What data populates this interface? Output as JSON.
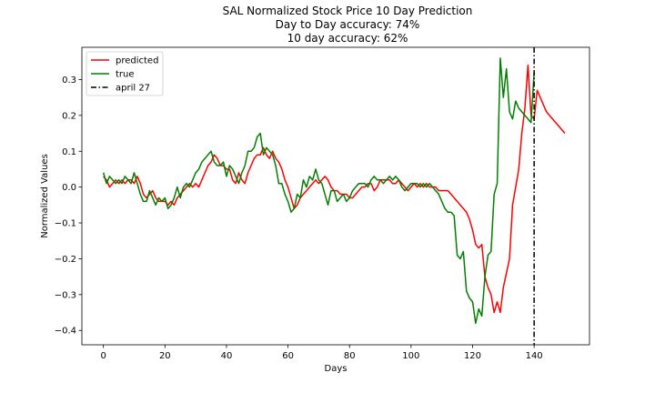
{
  "chart_data": {
    "type": "line",
    "title": [
      "SAL Normalized Stock Price 10 Day Prediction",
      "Day to Day accuracy: 74%",
      "10 day accuracy: 62%"
    ],
    "xlabel": "Days",
    "ylabel": "Normalized Values",
    "xlim": [
      -7,
      158
    ],
    "ylim": [
      -0.44,
      0.39
    ],
    "xticks": [
      0,
      20,
      40,
      60,
      80,
      100,
      120,
      140
    ],
    "xtick_labels": [
      "0",
      "20",
      "40",
      "60",
      "80",
      "100",
      "120",
      "140"
    ],
    "yticks": [
      -0.4,
      -0.3,
      -0.2,
      -0.1,
      0.0,
      0.1,
      0.2,
      0.3
    ],
    "ytick_labels": [
      "−0.4",
      "−0.3",
      "−0.2",
      "−0.1",
      "0.0",
      "0.1",
      "0.2",
      "0.3"
    ],
    "grid": false,
    "legend": "top-left",
    "vline": {
      "x": 140,
      "name": "april 27",
      "color": "#000000",
      "style": "dash-dot"
    },
    "series": [
      {
        "name": "predicted",
        "color": "#ff0000",
        "x": [
          0,
          1,
          2,
          3,
          4,
          5,
          6,
          7,
          8,
          9,
          10,
          11,
          12,
          13,
          14,
          15,
          16,
          17,
          18,
          19,
          20,
          21,
          22,
          23,
          24,
          25,
          26,
          27,
          28,
          29,
          30,
          31,
          32,
          33,
          34,
          35,
          36,
          37,
          38,
          39,
          40,
          41,
          42,
          43,
          44,
          45,
          46,
          47,
          48,
          49,
          50,
          51,
          52,
          53,
          54,
          55,
          56,
          57,
          58,
          59,
          60,
          61,
          62,
          63,
          64,
          65,
          66,
          67,
          68,
          69,
          70,
          71,
          72,
          73,
          74,
          75,
          76,
          77,
          78,
          79,
          80,
          81,
          82,
          83,
          84,
          85,
          86,
          87,
          88,
          89,
          90,
          91,
          92,
          93,
          94,
          95,
          96,
          97,
          98,
          99,
          100,
          101,
          102,
          103,
          104,
          105,
          106,
          107,
          108,
          109,
          110,
          111,
          112,
          113,
          114,
          115,
          116,
          117,
          118,
          119,
          120,
          121,
          122,
          123,
          124,
          125,
          126,
          127,
          128,
          129,
          130,
          131,
          132,
          133,
          134,
          135,
          136,
          137,
          138,
          139,
          140,
          141,
          142,
          143,
          144,
          145,
          146,
          147,
          148,
          149,
          150
        ],
        "y": [
          0.03,
          0.02,
          0.0,
          0.01,
          0.02,
          0.01,
          0.02,
          0.01,
          0.02,
          0.02,
          0.01,
          0.03,
          0.01,
          -0.02,
          -0.03,
          -0.02,
          -0.01,
          -0.03,
          -0.04,
          -0.04,
          -0.04,
          -0.05,
          -0.04,
          -0.05,
          -0.03,
          -0.02,
          -0.01,
          0.0,
          0.01,
          0.0,
          0.01,
          0.0,
          0.02,
          0.04,
          0.06,
          0.07,
          0.09,
          0.08,
          0.06,
          0.06,
          0.05,
          0.05,
          0.02,
          0.01,
          0.04,
          0.02,
          0.01,
          0.04,
          0.06,
          0.08,
          0.09,
          0.09,
          0.11,
          0.09,
          0.08,
          0.1,
          0.08,
          0.07,
          0.05,
          0.02,
          0.0,
          -0.03,
          -0.06,
          -0.05,
          -0.03,
          -0.02,
          -0.01,
          0.0,
          0.01,
          0.02,
          0.01,
          0.02,
          0.03,
          0.02,
          0.0,
          -0.01,
          -0.01,
          -0.02,
          -0.02,
          -0.02,
          -0.03,
          -0.03,
          -0.02,
          -0.01,
          0.0,
          0.0,
          0.01,
          0.01,
          -0.01,
          0.0,
          0.02,
          0.02,
          0.02,
          0.02,
          0.01,
          0.01,
          0.02,
          0.01,
          0.0,
          -0.01,
          0.0,
          0.01,
          0.0,
          0.01,
          0.0,
          0.01,
          0.0,
          0.0,
          0.0,
          -0.01,
          -0.01,
          -0.01,
          -0.01,
          -0.02,
          -0.03,
          -0.04,
          -0.05,
          -0.06,
          -0.07,
          -0.09,
          -0.12,
          -0.16,
          -0.17,
          -0.16,
          -0.25,
          -0.28,
          -0.3,
          -0.35,
          -0.32,
          -0.35,
          -0.28,
          -0.24,
          -0.2,
          -0.05,
          0.0,
          0.05,
          0.15,
          0.22,
          0.34,
          0.2,
          0.19,
          0.27,
          0.25,
          0.23,
          0.21,
          0.2,
          0.19,
          0.18,
          0.17,
          0.16,
          0.15
        ]
      },
      {
        "name": "true",
        "color": "#008000",
        "x": [
          0,
          1,
          2,
          3,
          4,
          5,
          6,
          7,
          8,
          9,
          10,
          11,
          12,
          13,
          14,
          15,
          16,
          17,
          18,
          19,
          20,
          21,
          22,
          23,
          24,
          25,
          26,
          27,
          28,
          29,
          30,
          31,
          32,
          33,
          34,
          35,
          36,
          37,
          38,
          39,
          40,
          41,
          42,
          43,
          44,
          45,
          46,
          47,
          48,
          49,
          50,
          51,
          52,
          53,
          54,
          55,
          56,
          57,
          58,
          59,
          60,
          61,
          62,
          63,
          64,
          65,
          66,
          67,
          68,
          69,
          70,
          71,
          72,
          73,
          74,
          75,
          76,
          77,
          78,
          79,
          80,
          81,
          82,
          83,
          84,
          85,
          86,
          87,
          88,
          89,
          90,
          91,
          92,
          93,
          94,
          95,
          96,
          97,
          98,
          99,
          100,
          101,
          102,
          103,
          104,
          105,
          106,
          107,
          108,
          109,
          110,
          111,
          112,
          113,
          114,
          115,
          116,
          117,
          118,
          119,
          120,
          121,
          122,
          123,
          124,
          125,
          126,
          127,
          128,
          129,
          130,
          131,
          132,
          133,
          134,
          135,
          136,
          137,
          138,
          139,
          140
        ],
        "y": [
          0.04,
          0.01,
          0.03,
          0.02,
          0.01,
          0.02,
          0.01,
          0.03,
          0.02,
          0.01,
          0.04,
          0.01,
          -0.02,
          -0.04,
          -0.04,
          -0.01,
          -0.03,
          -0.05,
          -0.03,
          -0.04,
          -0.03,
          -0.06,
          -0.05,
          -0.03,
          0.0,
          -0.03,
          0.0,
          0.01,
          0.0,
          0.02,
          0.04,
          0.05,
          0.07,
          0.08,
          0.09,
          0.1,
          0.07,
          0.06,
          0.06,
          0.07,
          0.03,
          0.06,
          0.05,
          0.03,
          0.01,
          0.04,
          0.06,
          0.1,
          0.1,
          0.11,
          0.14,
          0.15,
          0.09,
          0.11,
          0.1,
          0.09,
          0.06,
          0.01,
          0.01,
          -0.02,
          -0.04,
          -0.07,
          -0.06,
          -0.02,
          -0.03,
          0.02,
          0.0,
          0.03,
          0.02,
          0.05,
          0.02,
          0.01,
          -0.02,
          -0.05,
          -0.01,
          -0.01,
          -0.04,
          -0.03,
          -0.02,
          -0.04,
          -0.03,
          -0.01,
          0.0,
          0.01,
          0.01,
          0.01,
          0.0,
          0.02,
          0.03,
          0.02,
          0.02,
          0.01,
          0.02,
          0.03,
          0.02,
          0.03,
          0.02,
          0.0,
          -0.01,
          0.0,
          0.01,
          0.01,
          0.01,
          0.0,
          0.01,
          0.0,
          0.01,
          0.0,
          -0.01,
          -0.02,
          -0.04,
          -0.06,
          -0.07,
          -0.07,
          -0.08,
          -0.19,
          -0.2,
          -0.18,
          -0.29,
          -0.31,
          -0.32,
          -0.38,
          -0.34,
          -0.36,
          -0.25,
          -0.19,
          -0.18,
          -0.02,
          0.01,
          0.36,
          0.25,
          0.33,
          0.21,
          0.19,
          0.24,
          0.22,
          0.21,
          0.2,
          0.19,
          0.18,
          0.32
        ]
      }
    ]
  }
}
